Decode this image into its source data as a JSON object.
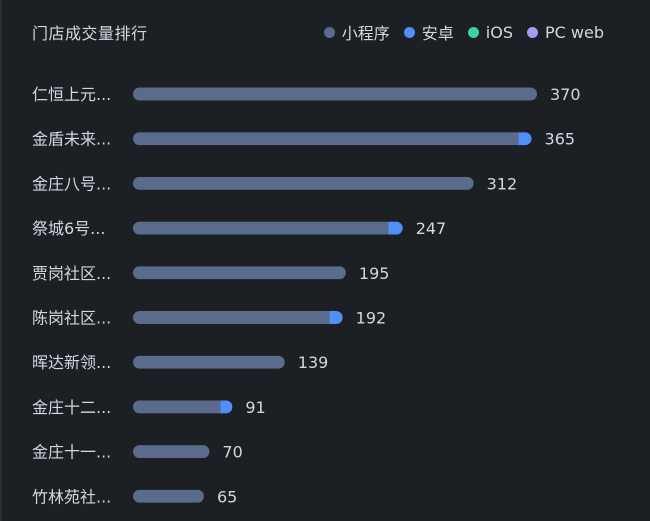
{
  "chart_data": {
    "type": "bar",
    "orientation": "horizontal",
    "stacked": true,
    "title": "门店成交量排行",
    "categories": [
      "仁恒上元...",
      "金盾未来...",
      "金庄八号...",
      "祭城6号...",
      "贾岗社区...",
      "陈岗社区...",
      "晖达新领...",
      "金庄十二...",
      "金庄十一...",
      "竹林苑社..."
    ],
    "totals": [
      370,
      365,
      312,
      247,
      195,
      192,
      139,
      91,
      70,
      65
    ],
    "series": [
      {
        "name": "小程序",
        "color": "#5b6b8c",
        "values": [
          370,
          353,
          312,
          234,
          195,
          180,
          139,
          80,
          70,
          65
        ]
      },
      {
        "name": "安卓",
        "color": "#4f8ff7",
        "values": [
          0,
          12,
          0,
          13,
          0,
          12,
          0,
          11,
          0,
          0
        ]
      },
      {
        "name": "iOS",
        "color": "#3fd0a7",
        "values": [
          0,
          0,
          0,
          0,
          0,
          0,
          0,
          0,
          0,
          0
        ]
      },
      {
        "name": "PC web",
        "color": "#a79cf2",
        "values": [
          0,
          0,
          0,
          0,
          0,
          0,
          0,
          0,
          0,
          0
        ]
      }
    ],
    "xlim": [
      0,
      370
    ],
    "legend_position": "top-right",
    "grid": false
  }
}
